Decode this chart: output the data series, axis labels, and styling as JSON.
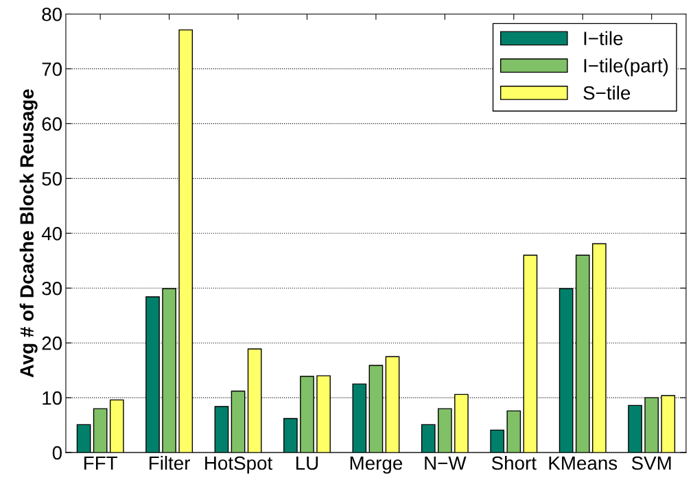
{
  "chart_data": {
    "type": "bar",
    "ylabel": "Avg # of Dcache Block Reusage",
    "categories": [
      "FFT",
      "Filter",
      "HotSpot",
      "LU",
      "Merge",
      "N−W",
      "Short",
      "KMeans",
      "SVM"
    ],
    "series": [
      {
        "name": "I−tile",
        "color": "#00806a",
        "values": [
          5.1,
          28.4,
          8.4,
          6.2,
          12.5,
          5.1,
          4.1,
          29.9,
          8.6
        ]
      },
      {
        "name": "I−tile(part)",
        "color": "#80c066",
        "values": [
          8.0,
          29.9,
          11.2,
          13.9,
          15.9,
          8.0,
          7.6,
          36.0,
          10.0
        ]
      },
      {
        "name": "S−tile",
        "color": "#ffff66",
        "values": [
          9.6,
          77.1,
          18.9,
          14.0,
          17.5,
          10.6,
          36.0,
          38.1,
          10.4
        ]
      }
    ],
    "ylim": [
      0,
      80
    ],
    "yticks": [
      0,
      10,
      20,
      30,
      40,
      50,
      60,
      70,
      80
    ],
    "grid": "y",
    "legend": "top right"
  }
}
